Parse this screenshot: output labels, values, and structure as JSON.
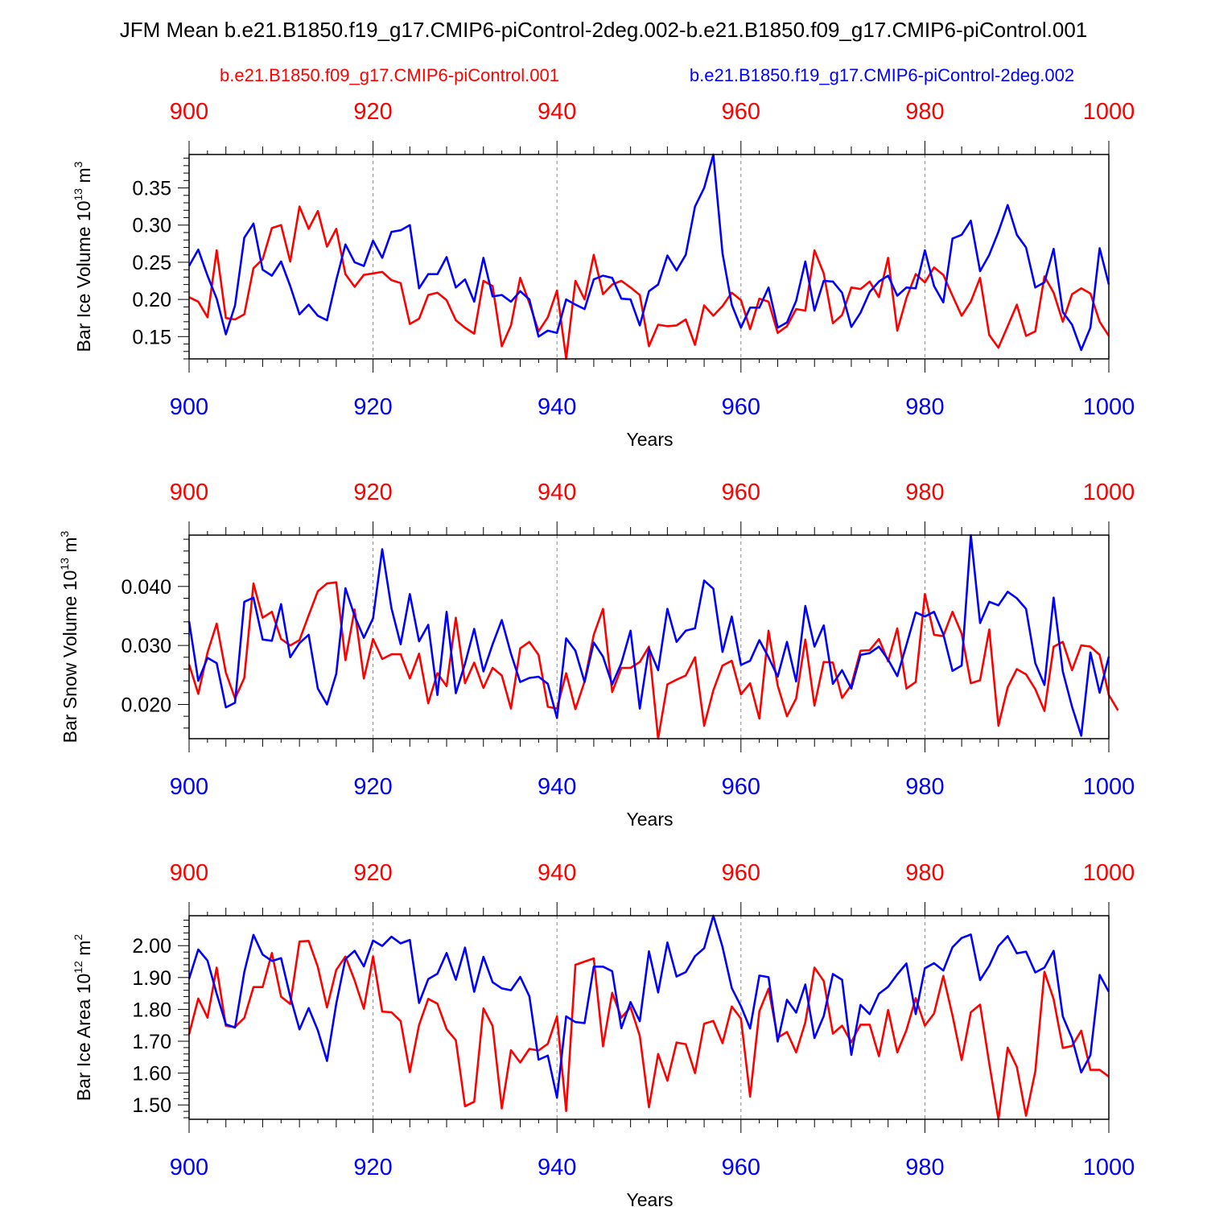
{
  "title": "JFM Mean b.e21.B1850.f19_g17.CMIP6-piControl-2deg.002-b.e21.B1850.f09_g17.CMIP6-piControl.001",
  "legend": {
    "red_label": "b.e21.B1850.f09_g17.CMIP6-piControl.001",
    "blue_label": "b.e21.B1850.f19_g17.CMIP6-piControl-2deg.002"
  },
  "colors": {
    "red": "#ff0000",
    "blue": "#0000ff",
    "axis": "#000000",
    "grid": "#888888"
  },
  "chart_data": [
    {
      "type": "line",
      "name": "ice-volume",
      "ylabel": "Bar Ice Volume 10",
      "ylabel_exp": "13",
      "ylabel_unit": " m",
      "ylabel_unit_exp": "3",
      "xlabel": "Years",
      "xlim": [
        900,
        1000
      ],
      "ylim": [
        0.12,
        0.395
      ],
      "xticks": [
        "900",
        "920",
        "940",
        "960",
        "980",
        "1000"
      ],
      "yticks": [
        "0.15",
        "0.20",
        "0.25",
        "0.30",
        "0.35"
      ],
      "x_start": 900,
      "series": [
        {
          "name": "b.e21.B1850.f09_g17.CMIP6-piControl.001",
          "color": "red",
          "values": [
            0.203,
            0.197,
            0.176,
            0.266,
            0.175,
            0.173,
            0.18,
            0.242,
            0.254,
            0.296,
            0.3,
            0.251,
            0.325,
            0.295,
            0.319,
            0.271,
            0.295,
            0.234,
            0.217,
            0.233,
            0.235,
            0.237,
            0.226,
            0.222,
            0.167,
            0.174,
            0.206,
            0.209,
            0.199,
            0.172,
            0.162,
            0.154,
            0.225,
            0.218,
            0.137,
            0.165,
            0.229,
            0.195,
            0.157,
            0.176,
            0.212,
            0.12,
            0.225,
            0.2,
            0.26,
            0.207,
            0.22,
            0.225,
            0.216,
            0.206,
            0.137,
            0.166,
            0.164,
            0.165,
            0.173,
            0.139,
            0.192,
            0.178,
            0.191,
            0.209,
            0.199,
            0.16,
            0.201,
            0.197,
            0.155,
            0.164,
            0.187,
            0.185,
            0.266,
            0.235,
            0.168,
            0.179,
            0.216,
            0.214,
            0.224,
            0.203,
            0.256,
            0.158,
            0.202,
            0.234,
            0.223,
            0.243,
            0.233,
            0.205,
            0.178,
            0.197,
            0.229,
            0.152,
            0.135,
            0.164,
            0.193,
            0.151,
            0.157,
            0.231,
            0.209,
            0.17,
            0.207,
            0.215,
            0.208,
            0.17,
            0.151
          ]
        },
        {
          "name": "b.e21.B1850.f19_g17.CMIP6-piControl-2deg.002",
          "color": "blue",
          "values": [
            0.245,
            0.267,
            0.232,
            0.201,
            0.153,
            0.192,
            0.283,
            0.302,
            0.24,
            0.232,
            0.251,
            0.218,
            0.18,
            0.193,
            0.178,
            0.172,
            0.226,
            0.274,
            0.25,
            0.245,
            0.279,
            0.256,
            0.291,
            0.293,
            0.3,
            0.215,
            0.234,
            0.234,
            0.257,
            0.216,
            0.227,
            0.197,
            0.256,
            0.204,
            0.206,
            0.197,
            0.211,
            0.2,
            0.15,
            0.158,
            0.155,
            0.2,
            0.193,
            0.187,
            0.227,
            0.232,
            0.229,
            0.201,
            0.2,
            0.165,
            0.211,
            0.22,
            0.259,
            0.239,
            0.26,
            0.325,
            0.35,
            0.395,
            0.262,
            0.193,
            0.162,
            0.189,
            0.189,
            0.216,
            0.162,
            0.169,
            0.198,
            0.251,
            0.185,
            0.225,
            0.224,
            0.209,
            0.163,
            0.182,
            0.21,
            0.224,
            0.232,
            0.205,
            0.216,
            0.215,
            0.266,
            0.218,
            0.196,
            0.282,
            0.287,
            0.306,
            0.238,
            0.26,
            0.291,
            0.327,
            0.287,
            0.27,
            0.216,
            0.223,
            0.268,
            0.183,
            0.166,
            0.132,
            0.162,
            0.269,
            0.22
          ]
        }
      ]
    },
    {
      "type": "line",
      "name": "snow-volume",
      "ylabel": "Bar Snow Volume 10",
      "ylabel_exp": "13",
      "ylabel_unit": " m",
      "ylabel_unit_exp": "3",
      "xlabel": "Years",
      "xlim": [
        900,
        1000
      ],
      "ylim": [
        0.0142,
        0.0487
      ],
      "xticks": [
        "900",
        "920",
        "940",
        "960",
        "980",
        "1000"
      ],
      "yticks": [
        "0.020",
        "0.030",
        "0.040"
      ],
      "x_start": 900,
      "series": [
        {
          "name": "b.e21.B1850.f09_g17.CMIP6-piControl.001",
          "color": "red",
          "values": [
            0.0268,
            0.0218,
            0.0288,
            0.0337,
            0.0254,
            0.021,
            0.0245,
            0.0405,
            0.0347,
            0.0357,
            0.0311,
            0.03,
            0.0309,
            0.0351,
            0.0392,
            0.0405,
            0.0407,
            0.0275,
            0.0361,
            0.0244,
            0.0311,
            0.0277,
            0.0285,
            0.0285,
            0.0244,
            0.0286,
            0.0202,
            0.0253,
            0.0231,
            0.0347,
            0.0236,
            0.0271,
            0.0228,
            0.0262,
            0.0249,
            0.0193,
            0.0295,
            0.0306,
            0.0284,
            0.0196,
            0.0193,
            0.0253,
            0.0192,
            0.0239,
            0.0318,
            0.0362,
            0.0221,
            0.0262,
            0.0262,
            0.0272,
            0.0298,
            0.0142,
            0.0234,
            0.0242,
            0.0249,
            0.028,
            0.0164,
            0.0224,
            0.0266,
            0.0274,
            0.0217,
            0.0236,
            0.0176,
            0.0325,
            0.0232,
            0.018,
            0.021,
            0.031,
            0.0198,
            0.0272,
            0.0271,
            0.0211,
            0.0233,
            0.0291,
            0.0292,
            0.0311,
            0.0273,
            0.0329,
            0.0227,
            0.0238,
            0.0387,
            0.0318,
            0.0316,
            0.0357,
            0.032,
            0.0236,
            0.0241,
            0.0327,
            0.0164,
            0.0229,
            0.026,
            0.0251,
            0.0226,
            0.0189,
            0.0298,
            0.0306,
            0.0258,
            0.03,
            0.0298,
            0.0284,
            0.0216,
            0.019
          ]
        },
        {
          "name": "b.e21.B1850.f19_g17.CMIP6-piControl-2deg.002",
          "color": "blue",
          "values": [
            0.0341,
            0.024,
            0.0279,
            0.027,
            0.0195,
            0.0203,
            0.0374,
            0.0381,
            0.031,
            0.0308,
            0.037,
            0.028,
            0.0304,
            0.0318,
            0.0227,
            0.02,
            0.0252,
            0.0397,
            0.035,
            0.0313,
            0.0346,
            0.0463,
            0.0363,
            0.0302,
            0.0387,
            0.0307,
            0.0335,
            0.0216,
            0.0357,
            0.0219,
            0.0269,
            0.0328,
            0.0256,
            0.0302,
            0.0343,
            0.0286,
            0.0238,
            0.0245,
            0.0247,
            0.0235,
            0.0177,
            0.0312,
            0.0291,
            0.0238,
            0.0305,
            0.0281,
            0.0234,
            0.027,
            0.0325,
            0.0193,
            0.0295,
            0.0258,
            0.0362,
            0.0306,
            0.0325,
            0.0329,
            0.041,
            0.0396,
            0.0289,
            0.0349,
            0.0267,
            0.0274,
            0.0309,
            0.028,
            0.0247,
            0.0306,
            0.0239,
            0.0367,
            0.0298,
            0.0334,
            0.0235,
            0.0258,
            0.0227,
            0.0284,
            0.0287,
            0.0298,
            0.0276,
            0.0248,
            0.0301,
            0.0356,
            0.0349,
            0.0357,
            0.0319,
            0.0257,
            0.0266,
            0.0487,
            0.0338,
            0.0374,
            0.0368,
            0.0391,
            0.038,
            0.0362,
            0.027,
            0.0233,
            0.0381,
            0.0256,
            0.0196,
            0.0147,
            0.0288,
            0.022,
            0.0281
          ]
        }
      ]
    },
    {
      "type": "line",
      "name": "ice-area",
      "ylabel": "Bar Ice Area 10",
      "ylabel_exp": "12",
      "ylabel_unit": " m",
      "ylabel_unit_exp": "2",
      "xlabel": "Years",
      "xlim": [
        900,
        1000
      ],
      "ylim": [
        1.455,
        2.094
      ],
      "xticks": [
        "900",
        "920",
        "940",
        "960",
        "980",
        "1000"
      ],
      "yticks": [
        "1.50",
        "1.60",
        "1.70",
        "1.80",
        "1.90",
        "2.00"
      ],
      "x_start": 900,
      "series": [
        {
          "name": "b.e21.B1850.f09_g17.CMIP6-piControl.001",
          "color": "red",
          "values": [
            1.722,
            1.834,
            1.774,
            1.931,
            1.748,
            1.745,
            1.773,
            1.87,
            1.87,
            1.977,
            1.84,
            1.817,
            2.013,
            2.015,
            1.933,
            1.806,
            1.924,
            1.966,
            1.891,
            1.802,
            1.966,
            1.793,
            1.791,
            1.763,
            1.603,
            1.751,
            1.833,
            1.818,
            1.738,
            1.703,
            1.496,
            1.51,
            1.803,
            1.748,
            1.489,
            1.672,
            1.633,
            1.676,
            1.671,
            1.692,
            1.778,
            1.481,
            1.94,
            1.95,
            1.96,
            1.684,
            1.852,
            1.774,
            1.807,
            1.717,
            1.493,
            1.66,
            1.576,
            1.696,
            1.691,
            1.6,
            1.755,
            1.764,
            1.694,
            1.809,
            1.771,
            1.526,
            1.794,
            1.865,
            1.711,
            1.729,
            1.665,
            1.759,
            1.931,
            1.889,
            1.724,
            1.749,
            1.697,
            1.752,
            1.752,
            1.653,
            1.798,
            1.665,
            1.735,
            1.835,
            1.749,
            1.787,
            1.905,
            1.781,
            1.641,
            1.791,
            1.815,
            1.63,
            1.455,
            1.68,
            1.619,
            1.466,
            1.605,
            1.918,
            1.832,
            1.679,
            1.685,
            1.733,
            1.61,
            1.61,
            1.589
          ]
        },
        {
          "name": "b.e21.B1850.f19_g17.CMIP6-piControl-2deg.002",
          "color": "blue",
          "values": [
            1.896,
            1.988,
            1.953,
            1.849,
            1.753,
            1.743,
            1.917,
            2.034,
            1.972,
            1.952,
            1.961,
            1.84,
            1.737,
            1.804,
            1.734,
            1.638,
            1.818,
            1.958,
            1.984,
            1.935,
            2.016,
            1.999,
            2.028,
            2.007,
            2.018,
            1.82,
            1.895,
            1.912,
            1.977,
            1.893,
            1.994,
            1.855,
            1.965,
            1.885,
            1.866,
            1.86,
            1.902,
            1.841,
            1.642,
            1.655,
            1.523,
            1.778,
            1.76,
            1.757,
            1.934,
            1.934,
            1.92,
            1.741,
            1.823,
            1.763,
            1.982,
            1.853,
            2.01,
            1.903,
            1.917,
            1.967,
            1.992,
            2.094,
            1.996,
            1.867,
            1.81,
            1.74,
            1.906,
            1.901,
            1.699,
            1.83,
            1.79,
            1.878,
            1.71,
            1.779,
            1.911,
            1.893,
            1.657,
            1.814,
            1.785,
            1.849,
            1.871,
            1.91,
            1.944,
            1.785,
            1.929,
            1.945,
            1.922,
            1.995,
            2.024,
            2.035,
            1.892,
            1.937,
            1.999,
            2.03,
            1.976,
            1.981,
            1.916,
            1.931,
            1.984,
            1.778,
            1.709,
            1.602,
            1.656,
            1.908,
            1.855
          ]
        }
      ]
    }
  ]
}
